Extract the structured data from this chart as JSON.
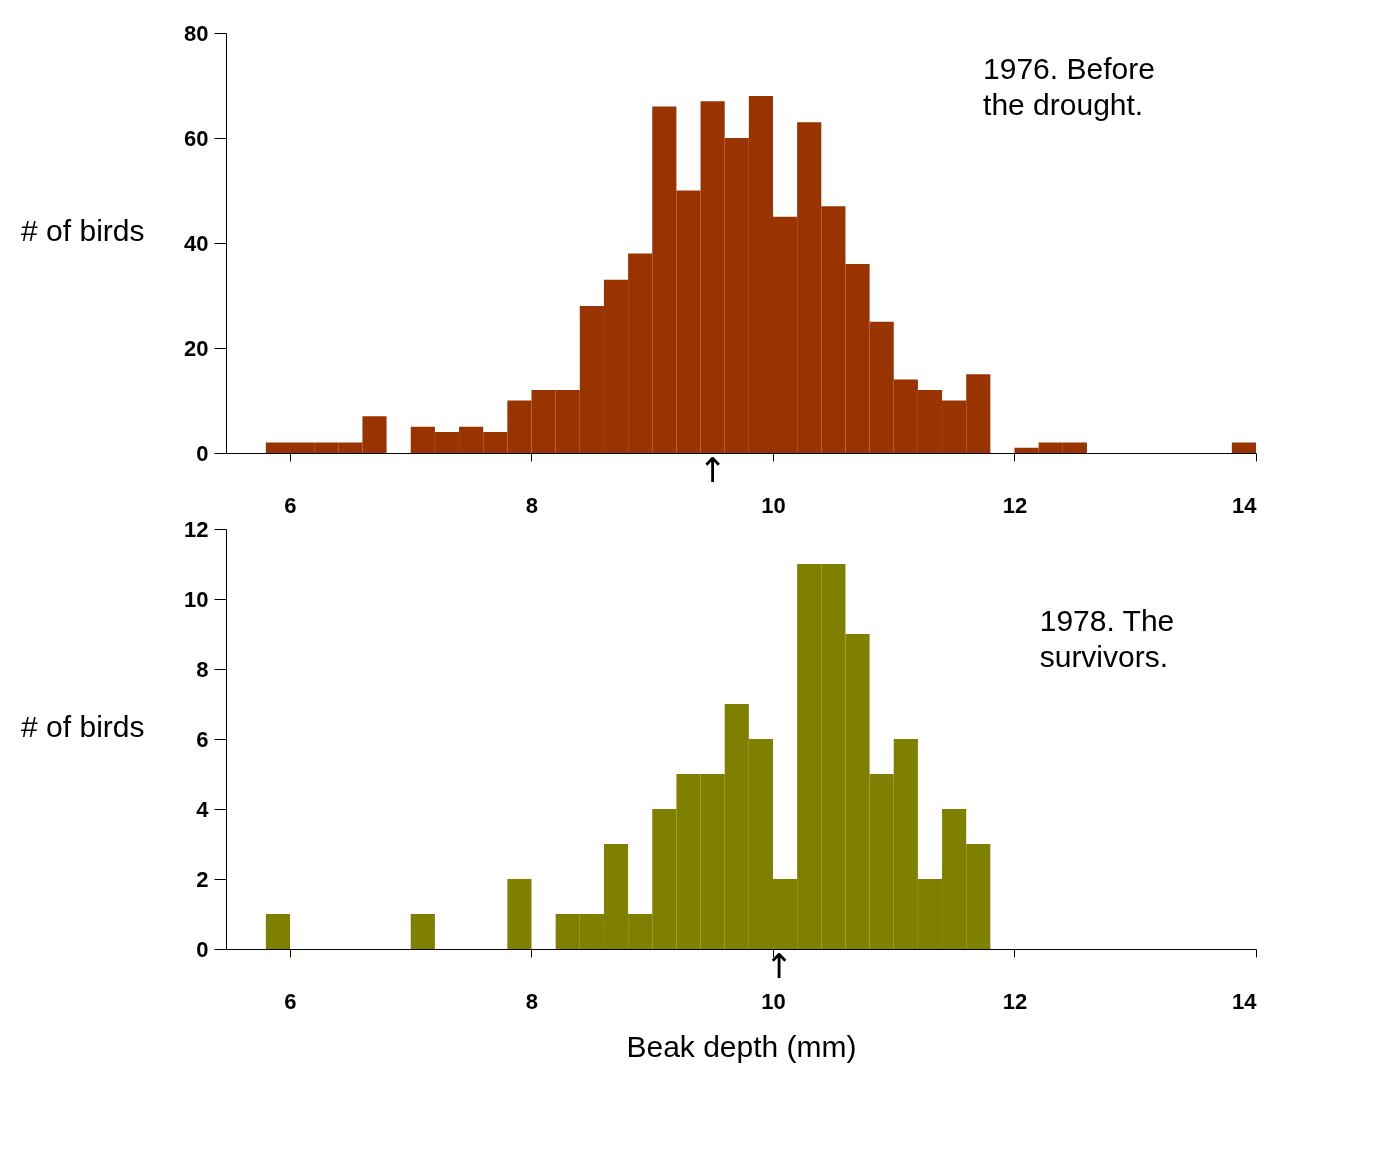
{
  "chart_data": [
    {
      "type": "histogram",
      "ylabel": "# of birds",
      "color": "#993300",
      "bins": [
        5.8,
        6.0,
        6.2,
        6.4,
        6.6,
        6.8,
        7.0,
        7.2,
        7.4,
        7.6,
        7.8,
        8.0,
        8.2,
        8.4,
        8.6,
        8.8,
        9.0,
        9.2,
        9.4,
        9.6,
        9.8,
        10.0,
        10.2,
        10.4,
        10.6,
        10.8,
        11.0,
        11.2,
        11.4,
        11.6,
        11.8,
        12.0,
        12.2,
        12.4,
        12.6,
        12.8,
        13.0,
        13.2,
        13.4,
        13.6,
        13.8,
        14.0
      ],
      "values": [
        2,
        2,
        2,
        2,
        7,
        0,
        5,
        4,
        5,
        4,
        10,
        12,
        12,
        28,
        33,
        38,
        66,
        50,
        67,
        60,
        68,
        45,
        63,
        47,
        36,
        25,
        14,
        12,
        10,
        15,
        0,
        1,
        2,
        2,
        0,
        0,
        0,
        0,
        0,
        0,
        2
      ],
      "xlim": [
        5.47,
        14
      ],
      "xticks": [
        6,
        8,
        10,
        12,
        14
      ],
      "ylim": [
        0,
        80
      ],
      "yticks": [
        0,
        20,
        40,
        60,
        80
      ],
      "grid": false,
      "annotations": [
        "1976. Before\nthe drought.",
        {
          "text": "↑",
          "x": 9.5,
          "y": 0
        }
      ]
    },
    {
      "type": "histogram",
      "ylabel": "# of birds",
      "xlabel": "Beak depth (mm)",
      "color": "#808000",
      "bins": [
        5.8,
        6.0,
        6.2,
        6.4,
        6.6,
        6.8,
        7.0,
        7.2,
        7.4,
        7.6,
        7.8,
        8.0,
        8.2,
        8.4,
        8.6,
        8.8,
        9.0,
        9.2,
        9.4,
        9.6,
        9.8,
        10.0,
        10.2,
        10.4,
        10.6,
        10.8,
        11.0,
        11.2,
        11.4,
        11.6,
        11.8,
        12.0,
        12.2,
        12.4,
        12.6,
        12.8,
        13.0,
        13.2,
        13.4,
        13.6,
        13.8,
        14.0
      ],
      "values": [
        1,
        0,
        0,
        0,
        0,
        0,
        1,
        0,
        0,
        0,
        2,
        0,
        1,
        1,
        3,
        1,
        4,
        5,
        5,
        7,
        6,
        2,
        11,
        11,
        9,
        5,
        6,
        2,
        4,
        3,
        0,
        0,
        0,
        0,
        0,
        0,
        0,
        0,
        0,
        0,
        0
      ],
      "xlim": [
        5.47,
        14
      ],
      "xticks": [
        6,
        8,
        10,
        12,
        14
      ],
      "ylim": [
        0,
        12
      ],
      "yticks": [
        0,
        2,
        4,
        6,
        8,
        10,
        12
      ],
      "grid": false,
      "annotations": [
        "1978. The\nsurvivors.",
        {
          "text": "↑",
          "x": 10.05,
          "y": 0
        }
      ]
    }
  ]
}
